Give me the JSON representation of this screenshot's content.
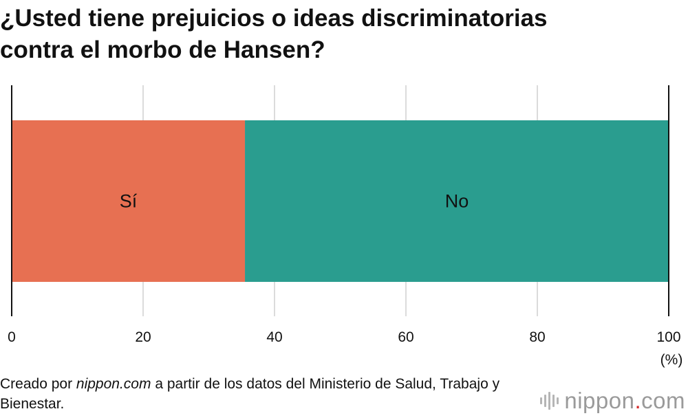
{
  "chart_data": {
    "type": "bar",
    "orientation": "horizontal",
    "stacked": true,
    "title": [
      "¿Usted tiene prejuicios o ideas discriminatorias",
      "contra el morbo de Hansen?"
    ],
    "xlabel": "",
    "unit_label": "(%)",
    "xlim": [
      0,
      100
    ],
    "ticks": [
      0,
      20,
      40,
      60,
      80,
      100
    ],
    "grid": true,
    "segments": [
      {
        "label": "Sí",
        "value": 35.5,
        "color": "#E77052"
      },
      {
        "label": "No",
        "value": 64.5,
        "color": "#2A9D8F"
      }
    ]
  },
  "footer": {
    "prefix": "Creado por ",
    "source": "nippon.com",
    "suffix": " a partir de los datos del Ministerio de Salud, Trabajo y Bienestar."
  },
  "logo": {
    "name": "nippon",
    "dot": ".",
    "tld": "com"
  }
}
